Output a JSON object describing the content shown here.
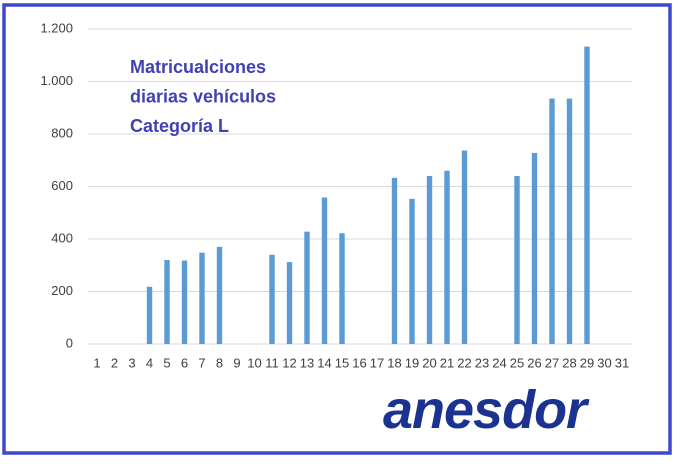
{
  "chart_data": {
    "type": "bar",
    "title": [
      "Matricualciones",
      "diarias vehículos",
      "Categoría L"
    ],
    "categories": [
      "1",
      "2",
      "3",
      "4",
      "5",
      "6",
      "7",
      "8",
      "9",
      "10",
      "11",
      "12",
      "13",
      "14",
      "15",
      "16",
      "17",
      "18",
      "19",
      "20",
      "21",
      "22",
      "23",
      "24",
      "25",
      "26",
      "27",
      "28",
      "29",
      "30",
      "31"
    ],
    "values": [
      null,
      null,
      null,
      218,
      320,
      318,
      348,
      370,
      null,
      null,
      340,
      312,
      428,
      558,
      422,
      null,
      null,
      633,
      553,
      640,
      660,
      737,
      null,
      null,
      640,
      728,
      935,
      935,
      1133,
      null,
      null
    ],
    "color": "#5b9bd5",
    "ylim": [
      0,
      1200
    ],
    "yticks": [
      0,
      200,
      400,
      600,
      800,
      {
        "value": 1000,
        "label": "1.000"
      },
      {
        "value": 1200,
        "label": "1.200"
      }
    ],
    "grid": true
  },
  "logo": "anesdor"
}
